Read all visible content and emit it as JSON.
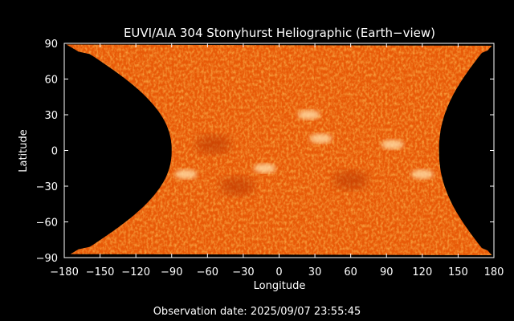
{
  "chart_data": {
    "type": "heatmap",
    "title": "EUVI/AIA 304 Stonyhurst Heliographic (Earth−view)",
    "xlabel": "Longitude",
    "ylabel": "Latitude",
    "xlim": [
      -180,
      180
    ],
    "ylim": [
      -90,
      90
    ],
    "x_ticks": [
      -180,
      -150,
      -120,
      -90,
      -60,
      -30,
      0,
      30,
      60,
      90,
      120,
      150,
      180
    ],
    "y_ticks": [
      -90,
      -60,
      -30,
      0,
      30,
      60,
      90
    ],
    "x_tick_labels": [
      "−180",
      "−150",
      "−120",
      "−90",
      "−60",
      "−30",
      "0",
      "30",
      "60",
      "90",
      "120",
      "150",
      "180"
    ],
    "y_tick_labels": [
      "−90",
      "−60",
      "−30",
      "0",
      "30",
      "60",
      "90"
    ],
    "grid": false,
    "colors": {
      "background": "#000000",
      "map_base": "#e85a08",
      "map_dark": "#b83400",
      "map_bright": "#ffd8a0",
      "frame": "#ffffff"
    },
    "features": [
      {
        "kind": "bright",
        "lon": 25,
        "lat": 30
      },
      {
        "kind": "bright",
        "lon": 35,
        "lat": 10
      },
      {
        "kind": "bright",
        "lon": 95,
        "lat": 5
      },
      {
        "kind": "bright",
        "lon": 120,
        "lat": -20
      },
      {
        "kind": "bright",
        "lon": -12,
        "lat": -15
      },
      {
        "kind": "bright",
        "lon": -78,
        "lat": -20
      },
      {
        "kind": "dark",
        "lon": -55,
        "lat": 5
      },
      {
        "kind": "dark",
        "lon": 60,
        "lat": -25
      },
      {
        "kind": "dark",
        "lon": -35,
        "lat": -30
      }
    ]
  },
  "footer": {
    "observation_text": "Observation date: 2025/09/07 23:55:45"
  }
}
